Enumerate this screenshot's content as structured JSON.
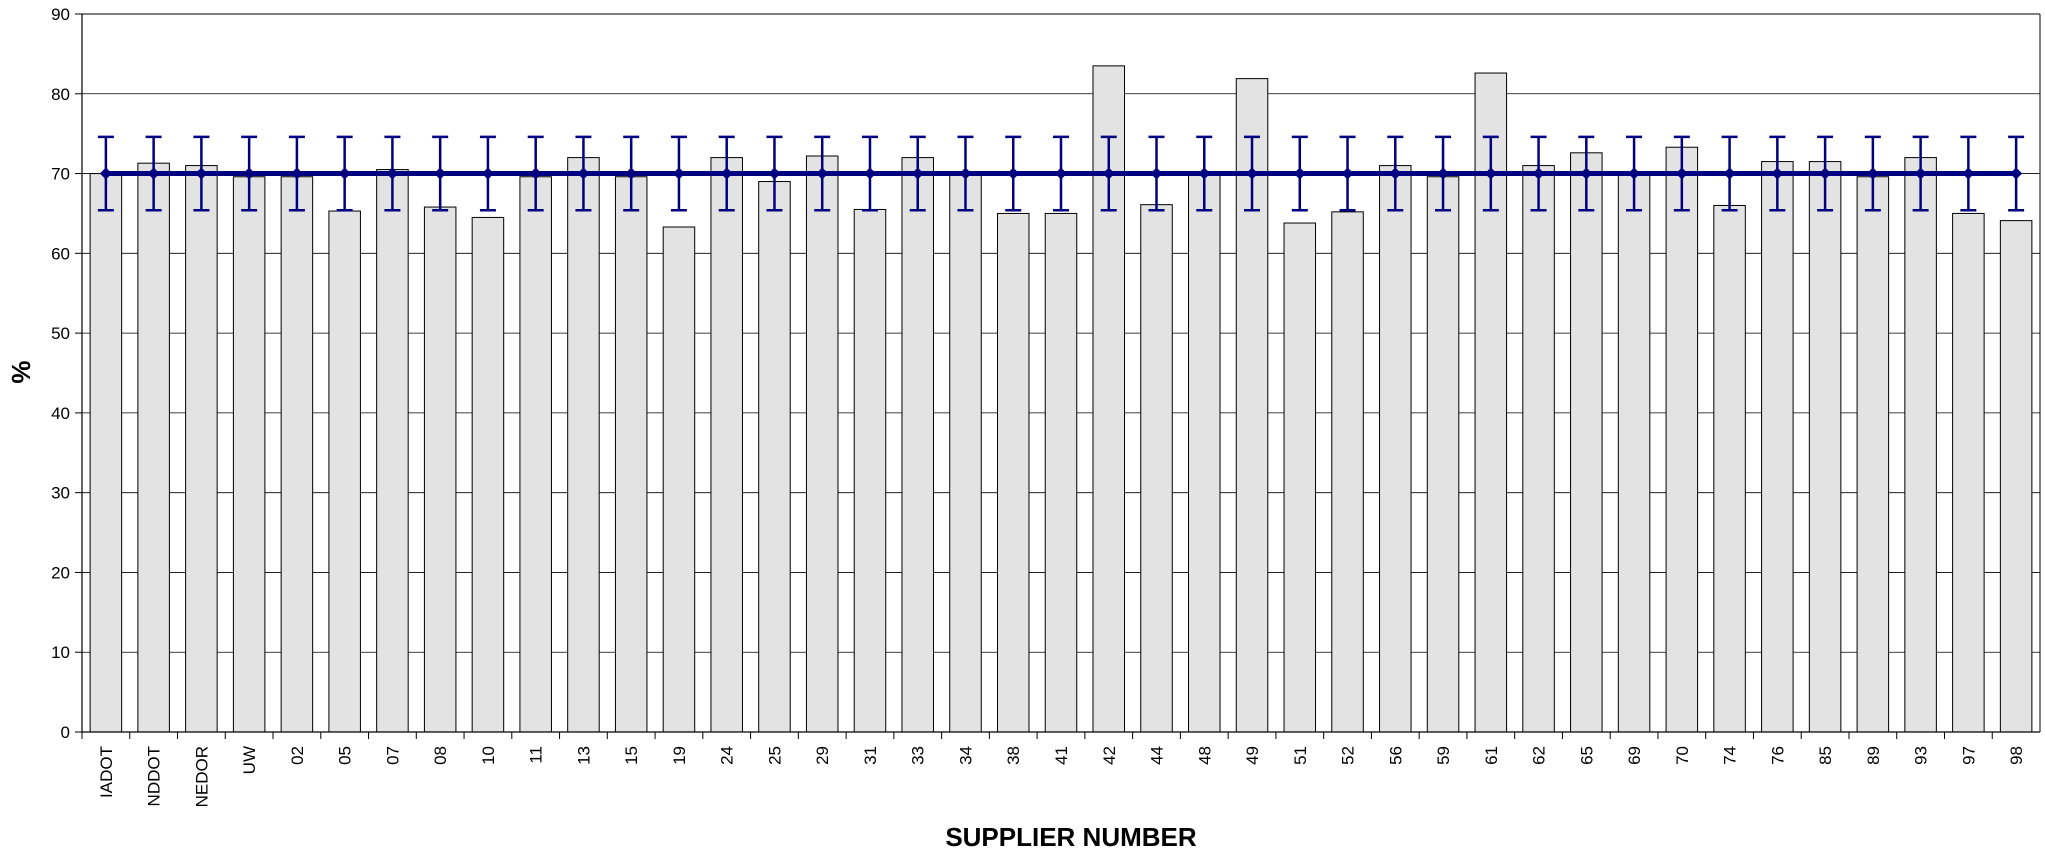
{
  "chart_data": {
    "type": "bar",
    "xlabel": "SUPPLIER NUMBER",
    "ylabel": "%",
    "ylim": [
      0,
      90
    ],
    "yticks": [
      0,
      10,
      20,
      30,
      40,
      50,
      60,
      70,
      80,
      90
    ],
    "grid": true,
    "categories": [
      "IADOT",
      "NDDOT",
      "NEDOR",
      "UW",
      "02",
      "05",
      "07",
      "08",
      "10",
      "11",
      "13",
      "15",
      "19",
      "24",
      "25",
      "29",
      "31",
      "33",
      "34",
      "38",
      "41",
      "42",
      "44",
      "48",
      "49",
      "51",
      "52",
      "56",
      "59",
      "61",
      "62",
      "65",
      "69",
      "70",
      "74",
      "76",
      "85",
      "89",
      "93",
      "97",
      "98"
    ],
    "series": [
      {
        "type": "bar",
        "values": [
          70,
          71.3,
          71,
          69.6,
          69.6,
          65.3,
          70.5,
          65.8,
          64.5,
          69.6,
          72,
          69.6,
          63.3,
          72,
          69,
          72.2,
          65.5,
          72,
          70.1,
          65,
          65,
          83.5,
          66.1,
          70.2,
          81.9,
          63.8,
          65.2,
          71,
          69.6,
          82.6,
          71,
          72.6,
          70.2,
          73.3,
          66,
          71.5,
          71.5,
          69.6,
          72,
          65,
          64.1
        ],
        "color": "#e3e3e3"
      },
      {
        "type": "line",
        "values": [
          70,
          70,
          70,
          70,
          70,
          70,
          70,
          70,
          70,
          70,
          70,
          70,
          70,
          70,
          70,
          70,
          70,
          70,
          70,
          70,
          70,
          70,
          70,
          70,
          70,
          70,
          70,
          70,
          70,
          70,
          70,
          70,
          70,
          70,
          70,
          70,
          70,
          70,
          70,
          70,
          70
        ],
        "error_plus": 4.6,
        "error_minus": 4.6,
        "color": "#000080"
      }
    ]
  }
}
